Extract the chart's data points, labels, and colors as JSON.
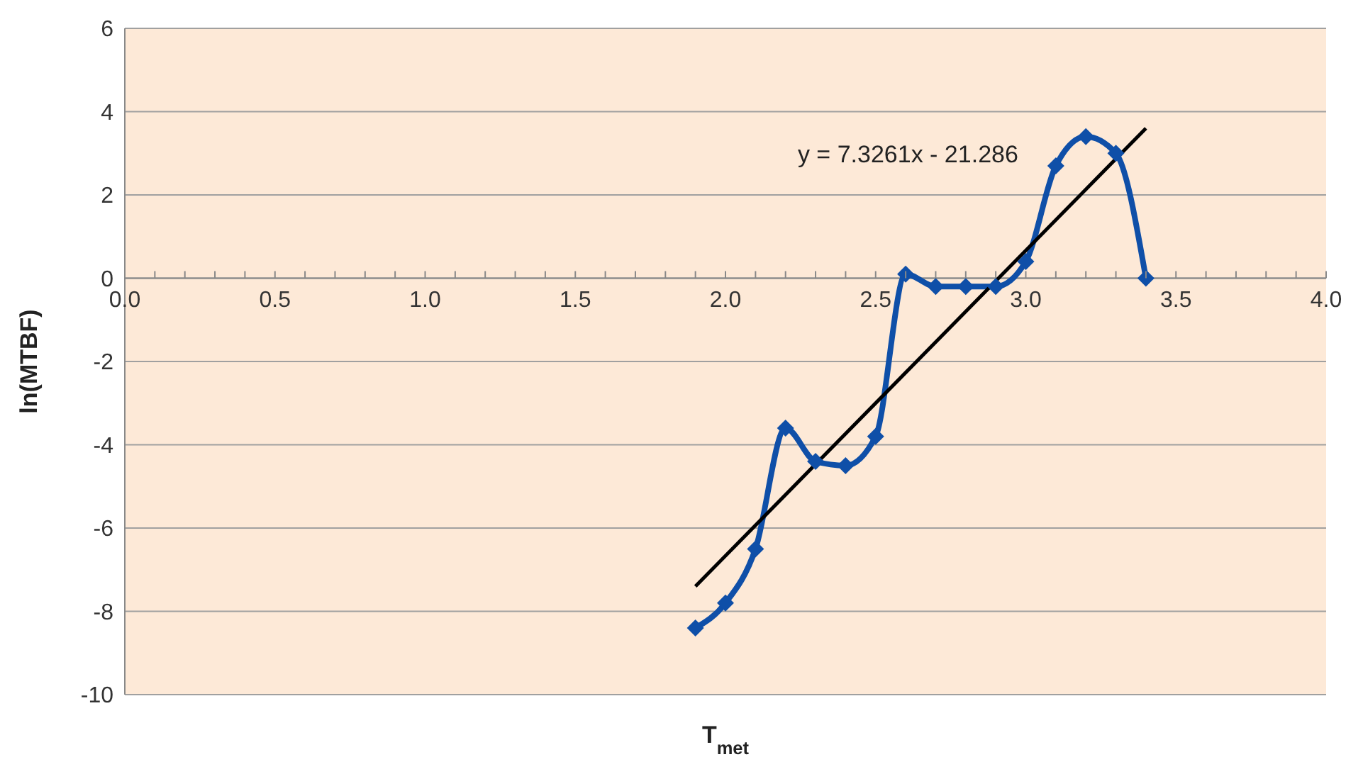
{
  "chart_data": {
    "type": "line",
    "xlabel": "T$_{met}$",
    "ylabel": "ln(MTBF)",
    "xlim": [
      0,
      4
    ],
    "ylim": [
      -10,
      6
    ],
    "xticks": [
      {
        "value": 0,
        "label": "0.0"
      },
      {
        "value": 0.1,
        "label": null
      },
      {
        "value": 0.2,
        "label": null
      },
      {
        "value": 0.3,
        "label": null
      },
      {
        "value": 0.4,
        "label": null
      },
      {
        "value": 0.5,
        "label": "0.5"
      },
      {
        "value": 0.6,
        "label": null
      },
      {
        "value": 0.7,
        "label": null
      },
      {
        "value": 0.8,
        "label": null
      },
      {
        "value": 0.9,
        "label": null
      },
      {
        "value": 1,
        "label": "1.0"
      },
      {
        "value": 1.1,
        "label": null
      },
      {
        "value": 1.2,
        "label": null
      },
      {
        "value": 1.3,
        "label": null
      },
      {
        "value": 1.4,
        "label": null
      },
      {
        "value": 1.5,
        "label": "1.5"
      },
      {
        "value": 1.6,
        "label": null
      },
      {
        "value": 1.7,
        "label": null
      },
      {
        "value": 1.8,
        "label": null
      },
      {
        "value": 1.9,
        "label": null
      },
      {
        "value": 2,
        "label": "2.0"
      },
      {
        "value": 2.1,
        "label": null
      },
      {
        "value": 2.2,
        "label": null
      },
      {
        "value": 2.3,
        "label": null
      },
      {
        "value": 2.4,
        "label": null
      },
      {
        "value": 2.5,
        "label": "2.5"
      },
      {
        "value": 2.6,
        "label": null
      },
      {
        "value": 2.7,
        "label": null
      },
      {
        "value": 2.8,
        "label": null
      },
      {
        "value": 2.9,
        "label": null
      },
      {
        "value": 3,
        "label": "3.0"
      },
      {
        "value": 3.1,
        "label": null
      },
      {
        "value": 3.2,
        "label": null
      },
      {
        "value": 3.3,
        "label": null
      },
      {
        "value": 3.4,
        "label": null
      },
      {
        "value": 3.5,
        "label": "3.5"
      },
      {
        "value": 3.6,
        "label": null
      },
      {
        "value": 3.7,
        "label": null
      },
      {
        "value": 3.8,
        "label": null
      },
      {
        "value": 3.9,
        "label": null
      },
      {
        "value": 4,
        "label": "4.0"
      }
    ],
    "yticks": [
      -10,
      -8,
      -6,
      -4,
      -2,
      0,
      2,
      4,
      6
    ],
    "grid": "y",
    "marker": "diamond",
    "line_style": "solid",
    "series": [
      {
        "x": [
          1.9,
          2.0,
          2.1,
          2.2,
          2.3,
          2.4,
          2.5,
          2.6,
          2.7,
          2.8,
          2.9,
          3.0,
          3.1,
          3.2,
          3.3,
          3.4
        ],
        "values": [
          -8.4,
          -7.8,
          -6.5,
          -3.6,
          -4.4,
          -4.5,
          -3.8,
          0.1,
          -0.2,
          -0.2,
          -0.2,
          0.4,
          2.7,
          3.4,
          3.0,
          0.0
        ],
        "color": "#0f4fa8"
      },
      {
        "type": "line",
        "name": "y = 7.3261x - 21.286",
        "x": [
          1.9,
          3.4
        ],
        "values": [
          -7.4,
          3.6
        ],
        "color": "#000000",
        "marker": "none"
      }
    ]
  }
}
